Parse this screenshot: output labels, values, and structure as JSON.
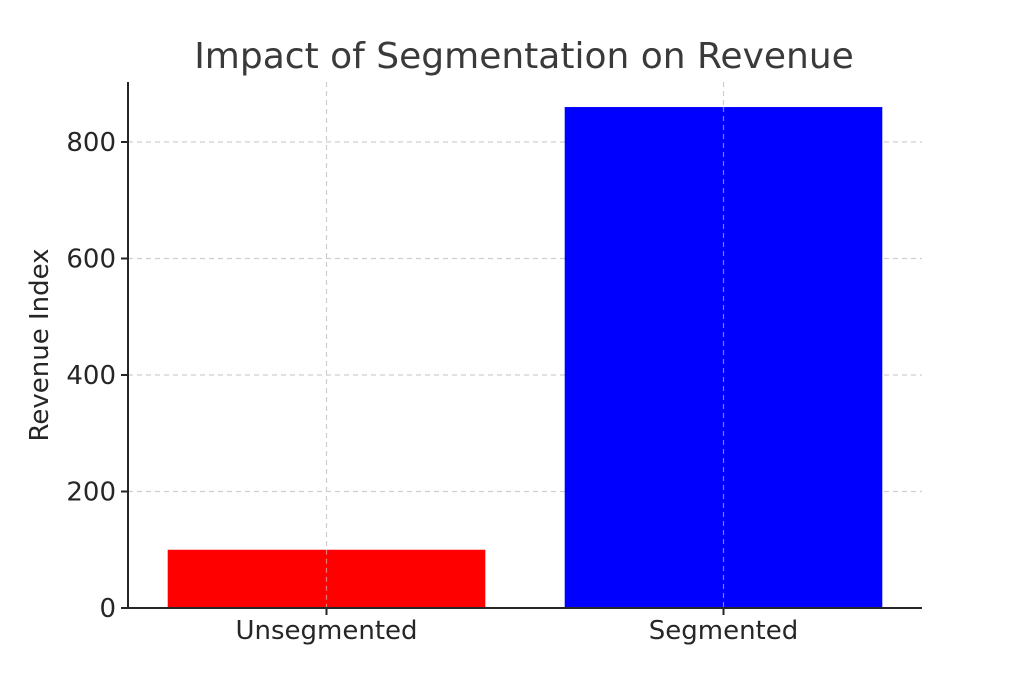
{
  "chart_data": {
    "type": "bar",
    "title": "Impact of Segmentation on Revenue",
    "xlabel": "",
    "ylabel": "Revenue Index",
    "categories": [
      "Unsegmented",
      "Segmented"
    ],
    "values": [
      100,
      860
    ],
    "colors": [
      "#ff0000",
      "#0000ff"
    ],
    "ylim": [
      0,
      903
    ],
    "yticks": [
      0,
      200,
      400,
      600,
      800
    ],
    "grid": true
  }
}
